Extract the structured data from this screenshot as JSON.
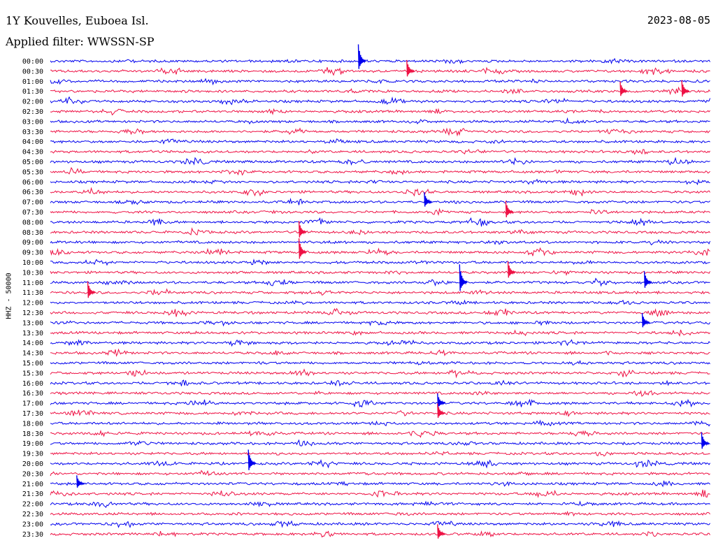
{
  "header": {
    "station": "1Y Kouvelles, Euboea Isl.",
    "filter": "Applied filter: WWSSN-SP",
    "date": "2023-08-05"
  },
  "chart_data": {
    "type": "line",
    "title": "1Y Kouvelles, Euboea Isl.",
    "subtitle": "Applied filter: WWSSN-SP",
    "date": "2023-08-05",
    "ylabel": "HHZ - 50000",
    "xlabel": "",
    "row_labels": [
      "00:00",
      "00:30",
      "01:00",
      "01:30",
      "02:00",
      "02:30",
      "03:00",
      "03:30",
      "04:00",
      "04:30",
      "05:00",
      "05:30",
      "06:00",
      "06:30",
      "07:00",
      "07:30",
      "08:00",
      "08:30",
      "09:00",
      "09:30",
      "10:00",
      "10:30",
      "11:00",
      "11:30",
      "12:00",
      "12:30",
      "13:00",
      "13:30",
      "14:00",
      "14:30",
      "15:00",
      "15:30",
      "16:00",
      "16:30",
      "17:00",
      "17:30",
      "18:00",
      "18:30",
      "19:00",
      "19:30",
      "20:00",
      "20:30",
      "21:00",
      "21:30",
      "22:00",
      "22:30",
      "23:00",
      "23:30"
    ],
    "trace_colors": [
      "#0000ee",
      "#ee1144"
    ],
    "minutes_per_row": 30,
    "spikes": [
      {
        "row": 0,
        "minute": 14.0,
        "amp": 24
      },
      {
        "row": 1,
        "minute": 16.2,
        "amp": 16
      },
      {
        "row": 3,
        "minute": 25.9,
        "amp": 14
      },
      {
        "row": 3,
        "minute": 28.7,
        "amp": 16
      },
      {
        "row": 14,
        "minute": 17.0,
        "amp": 14
      },
      {
        "row": 15,
        "minute": 20.7,
        "amp": 16
      },
      {
        "row": 17,
        "minute": 11.3,
        "amp": 16
      },
      {
        "row": 19,
        "minute": 11.3,
        "amp": 20
      },
      {
        "row": 21,
        "minute": 20.8,
        "amp": 16
      },
      {
        "row": 22,
        "minute": 18.6,
        "amp": 26
      },
      {
        "row": 22,
        "minute": 27.0,
        "amp": 16
      },
      {
        "row": 23,
        "minute": 1.7,
        "amp": 16
      },
      {
        "row": 26,
        "minute": 26.9,
        "amp": 14
      },
      {
        "row": 34,
        "minute": 17.6,
        "amp": 14
      },
      {
        "row": 35,
        "minute": 17.6,
        "amp": 14
      },
      {
        "row": 38,
        "minute": 29.6,
        "amp": 16
      },
      {
        "row": 40,
        "minute": 9.0,
        "amp": 20
      },
      {
        "row": 42,
        "minute": 1.2,
        "amp": 12
      },
      {
        "row": 47,
        "minute": 17.6,
        "amp": 14
      }
    ]
  }
}
